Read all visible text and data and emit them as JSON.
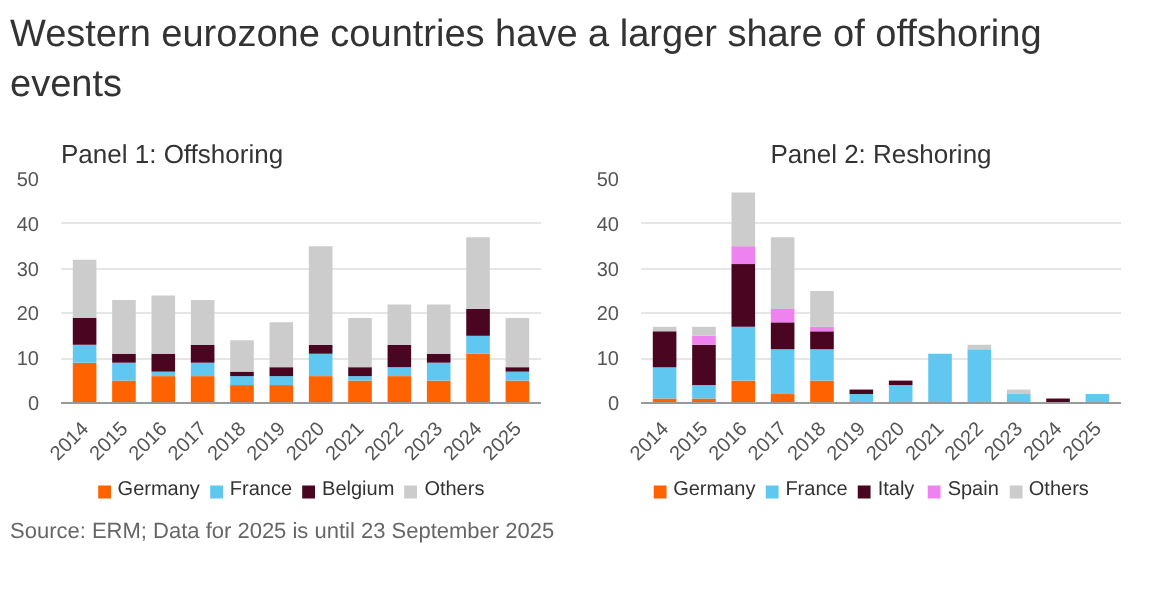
{
  "chart_data": [
    {
      "type": "bar",
      "title": "Western eurozone countries have a larger share of offshoring events",
      "subtitle": "Panel 1: Offshoring",
      "annotations": [
        "Source: ERM; Data for 2025 is until 23 September 2025"
      ],
      "stacked": true,
      "grid": "y",
      "legend": "bottom",
      "categories": [
        "2014",
        "2015",
        "2016",
        "2017",
        "2018",
        "2019",
        "2020",
        "2021",
        "2022",
        "2023",
        "2024",
        "2025"
      ],
      "ylim": [
        0,
        50
      ],
      "yticks": [
        0,
        10,
        20,
        30,
        40,
        50
      ],
      "series": [
        {
          "name": "Germany",
          "color": "#ff6200",
          "values": [
            9,
            5,
            6,
            6,
            4,
            4,
            6,
            5,
            6,
            5,
            11,
            5
          ]
        },
        {
          "name": "France",
          "color": "#60c8f0",
          "values": [
            4,
            4,
            1,
            3,
            2,
            2,
            5,
            1,
            2,
            4,
            4,
            2
          ]
        },
        {
          "name": "Belgium",
          "color": "#4a0520",
          "values": [
            6,
            2,
            4,
            4,
            1,
            2,
            2,
            2,
            5,
            2,
            6,
            1
          ]
        },
        {
          "name": "Others",
          "color": "#cccccc",
          "values": [
            13,
            12,
            13,
            10,
            7,
            10,
            22,
            11,
            9,
            11,
            16,
            11
          ]
        }
      ]
    },
    {
      "type": "bar",
      "title": "Panel 2: Reshoring",
      "stacked": true,
      "grid": "y",
      "legend": "bottom",
      "categories": [
        "2014",
        "2015",
        "2016",
        "2017",
        "2018",
        "2019",
        "2020",
        "2021",
        "2022",
        "2023",
        "2024",
        "2025"
      ],
      "ylim": [
        0,
        50
      ],
      "yticks": [
        0,
        10,
        20,
        30,
        40,
        50
      ],
      "series": [
        {
          "name": "Germany",
          "color": "#ff6200",
          "values": [
            1,
            1,
            5,
            2,
            5,
            0,
            0,
            0,
            0,
            0,
            0,
            0
          ]
        },
        {
          "name": "France",
          "color": "#60c8f0",
          "values": [
            7,
            3,
            12,
            10,
            7,
            2,
            4,
            11,
            12,
            2,
            0,
            2
          ]
        },
        {
          "name": "Italy",
          "color": "#4a0520",
          "values": [
            8,
            9,
            14,
            6,
            4,
            1,
            1,
            0,
            0,
            0,
            1,
            0
          ]
        },
        {
          "name": "Spain",
          "color": "#ee82ee",
          "values": [
            0,
            2,
            4,
            3,
            1,
            0,
            0,
            0,
            0,
            0,
            0,
            0
          ]
        },
        {
          "name": "Others",
          "color": "#cccccc",
          "values": [
            1,
            2,
            12,
            16,
            8,
            0,
            0,
            0,
            1,
            1,
            0,
            0
          ]
        }
      ]
    }
  ]
}
